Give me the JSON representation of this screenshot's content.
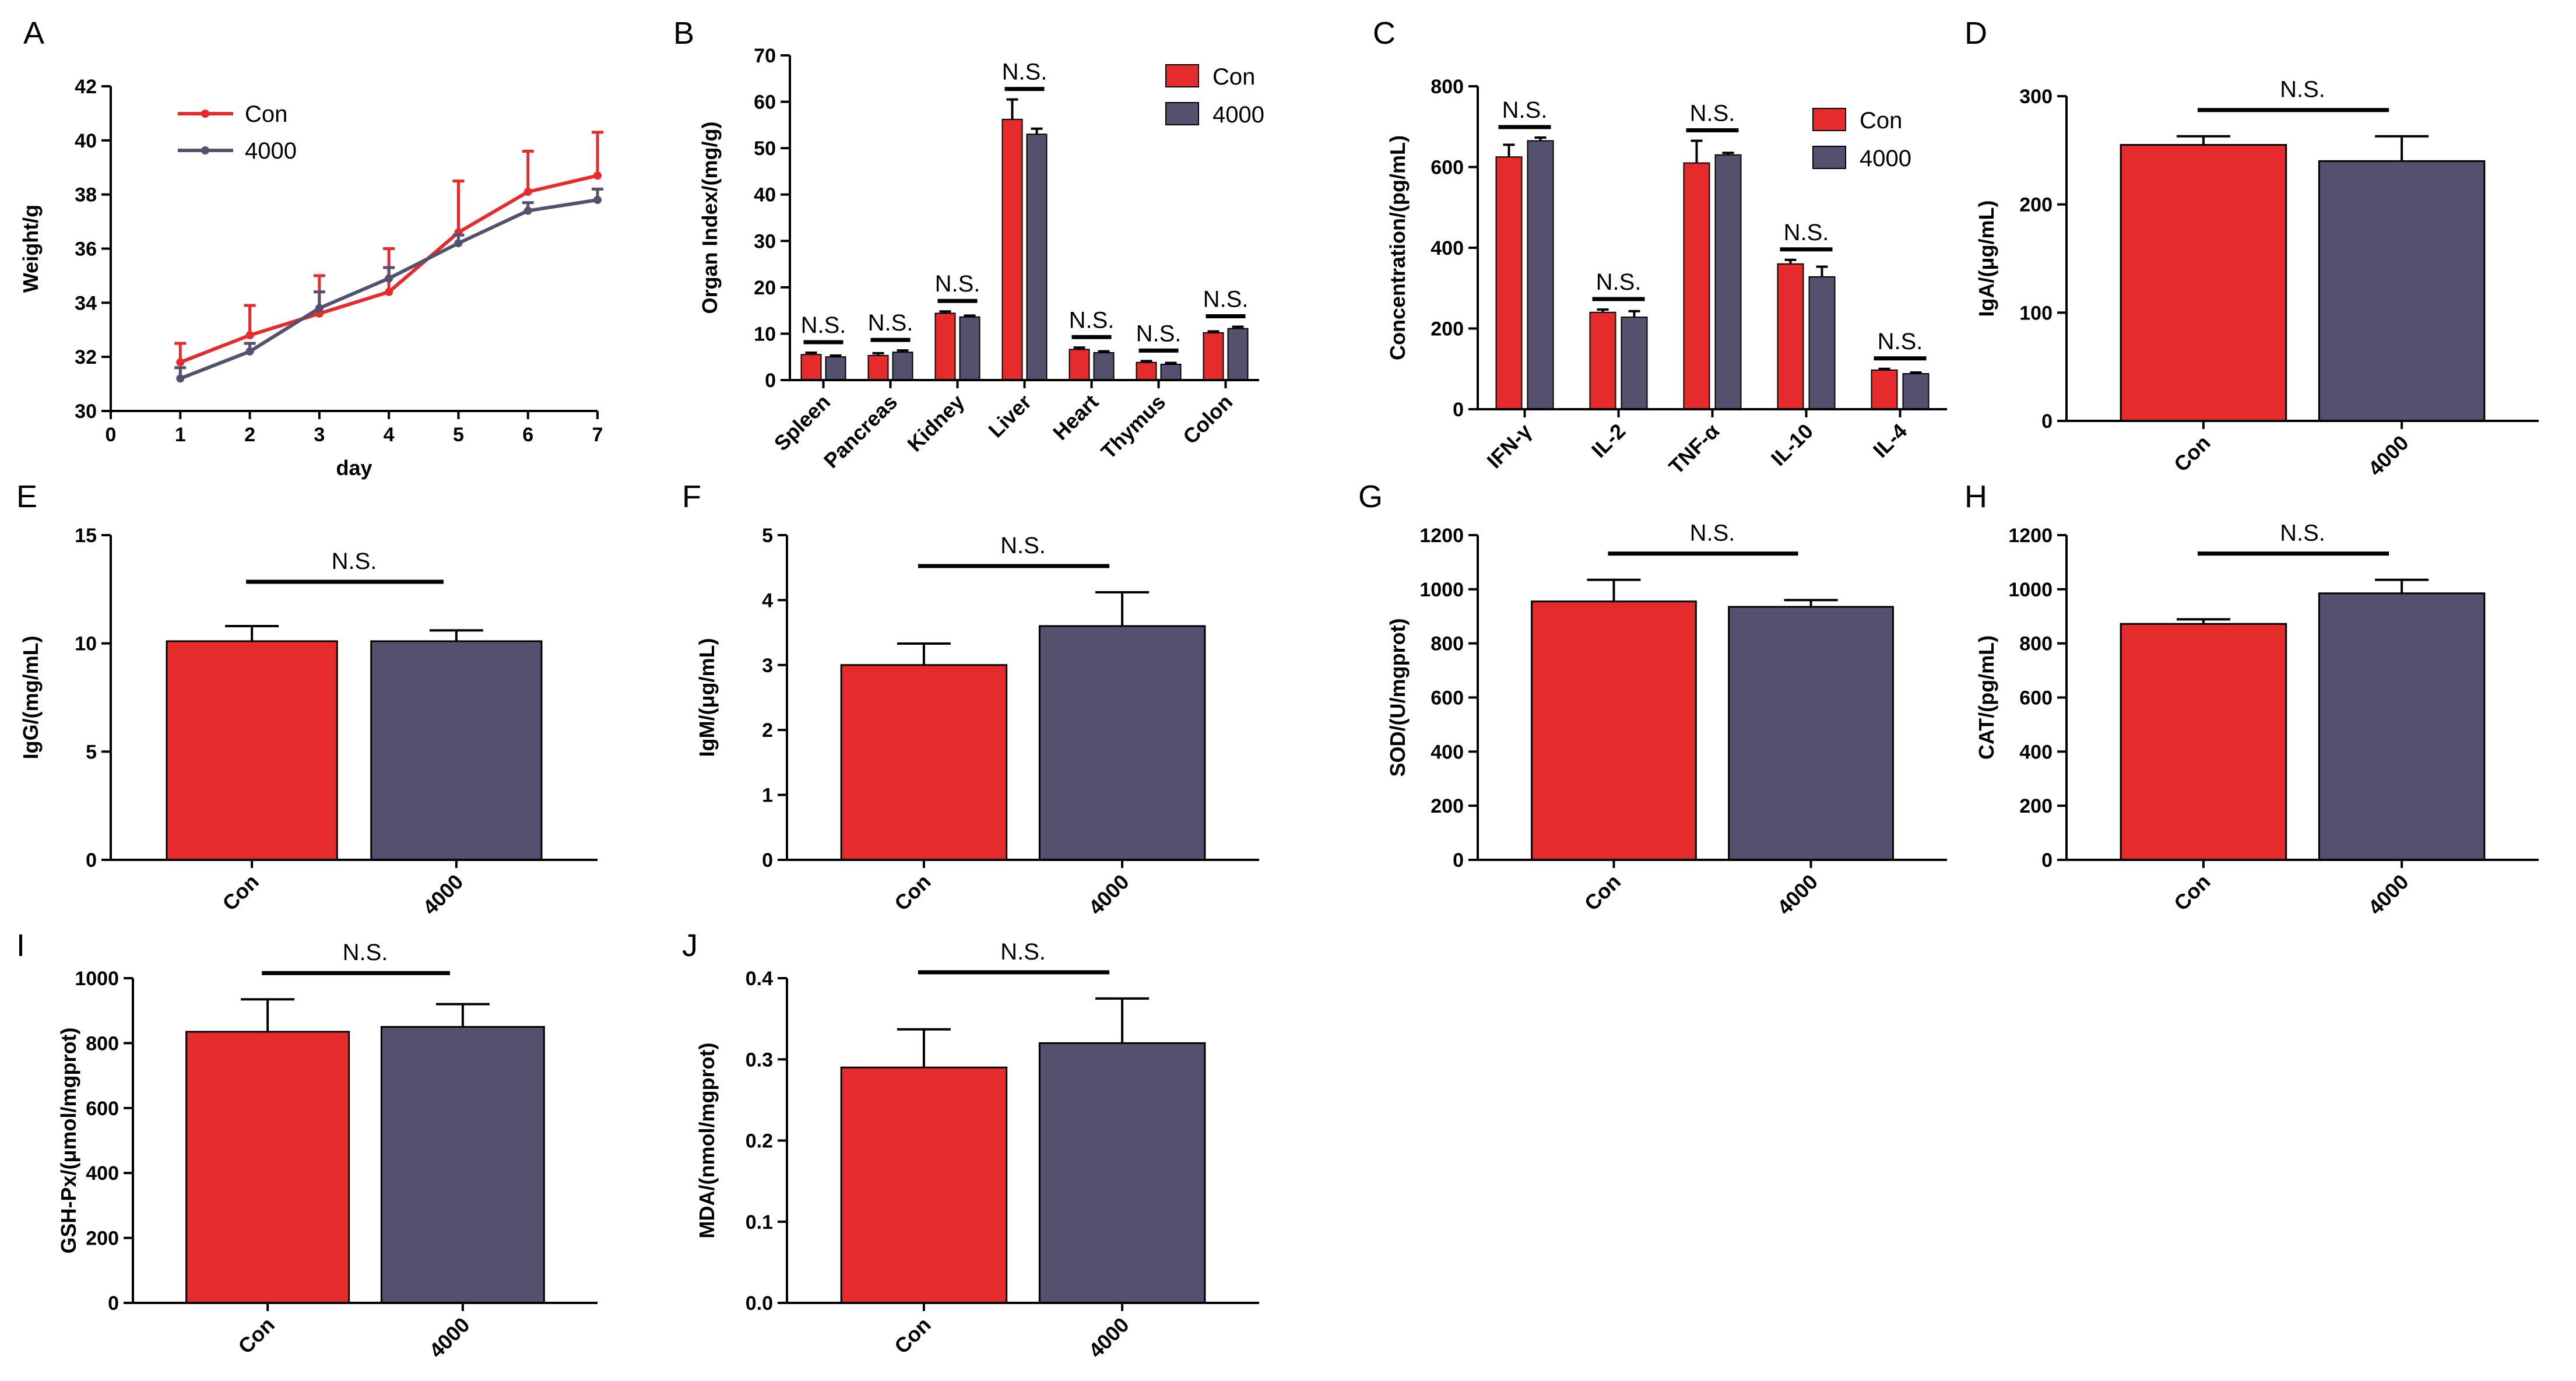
{
  "colors": {
    "con": "#e52b2b",
    "g4000": "#56506f",
    "axis": "#000000"
  },
  "chart_data": [
    {
      "id": "A",
      "panel_label": "A",
      "type": "line",
      "xlabel": "day",
      "ylabel": "Weight/g",
      "xlim": [
        0,
        7
      ],
      "xticks": [
        "0",
        "1",
        "2",
        "3",
        "4",
        "5",
        "6",
        "7"
      ],
      "ylim": [
        30,
        42
      ],
      "yticks": [
        "30",
        "32",
        "34",
        "36",
        "38",
        "40",
        "42"
      ],
      "legend": [
        "Con",
        "4000"
      ],
      "x": [
        1,
        2,
        3,
        4,
        5,
        6,
        7
      ],
      "series": [
        {
          "name": "Con",
          "values": [
            31.8,
            32.8,
            33.6,
            34.4,
            36.6,
            38.1,
            38.7
          ],
          "errors": [
            0.7,
            1.1,
            1.4,
            1.6,
            1.9,
            1.5,
            1.6
          ]
        },
        {
          "name": "4000",
          "values": [
            31.2,
            32.2,
            33.8,
            34.9,
            36.2,
            37.4,
            37.8
          ],
          "errors": [
            0.4,
            0.3,
            0.6,
            0.4,
            0.3,
            0.3,
            0.4
          ]
        }
      ]
    },
    {
      "id": "B",
      "panel_label": "B",
      "type": "bar",
      "ylabel": "Organ Index/(mg/g)",
      "ylim": [
        0,
        70
      ],
      "yticks": [
        "0",
        "10",
        "20",
        "30",
        "40",
        "50",
        "60",
        "70"
      ],
      "categories": [
        "Spleen",
        "Pancreas",
        "Kidney",
        "Liver",
        "Heart",
        "Thymus",
        "Colon"
      ],
      "legend": [
        "Con",
        "4000"
      ],
      "series": [
        {
          "name": "Con",
          "values": [
            5.5,
            5.3,
            14.4,
            56.2,
            6.6,
            3.8,
            10.2
          ],
          "errors": [
            0.4,
            0.5,
            0.4,
            4.3,
            0.4,
            0.3,
            0.3
          ]
        },
        {
          "name": "4000",
          "values": [
            5.0,
            6.0,
            13.6,
            53.0,
            5.9,
            3.4,
            11.1
          ],
          "errors": [
            0.3,
            0.4,
            0.3,
            1.2,
            0.3,
            0.3,
            0.4
          ]
        }
      ],
      "annotations": [
        "N.S.",
        "N.S.",
        "N.S.",
        "N.S.",
        "N.S.",
        "N.S.",
        "N.S."
      ]
    },
    {
      "id": "C",
      "panel_label": "C",
      "type": "bar",
      "ylabel": "Concentration/(pg/mL)",
      "ylim": [
        0,
        800
      ],
      "yticks": [
        "0",
        "200",
        "400",
        "600",
        "800"
      ],
      "categories": [
        "IFN-γ",
        "IL-2",
        "TNF-α",
        "IL-10",
        "IL-4"
      ],
      "legend": [
        "Con",
        "4000"
      ],
      "series": [
        {
          "name": "Con",
          "values": [
            625,
            240,
            610,
            360,
            97
          ],
          "errors": [
            30,
            7,
            55,
            10,
            3
          ]
        },
        {
          "name": "4000",
          "values": [
            665,
            228,
            630,
            328,
            88
          ],
          "errors": [
            8,
            15,
            5,
            25,
            3
          ]
        }
      ],
      "annotations": [
        "N.S.",
        "N.S.",
        "N.S.",
        "N.S.",
        "N.S."
      ]
    },
    {
      "id": "D",
      "panel_label": "D",
      "type": "bar",
      "ylabel": "IgA/(μg/mL)",
      "ylim": [
        0,
        300
      ],
      "yticks": [
        "0",
        "100",
        "200",
        "300"
      ],
      "categories": [
        "Con",
        "4000"
      ],
      "values": [
        255,
        240
      ],
      "errors": [
        8,
        23
      ],
      "annotation": "N.S."
    },
    {
      "id": "E",
      "panel_label": "E",
      "type": "bar",
      "ylabel": "IgG/(mg/mL)",
      "ylim": [
        0,
        15
      ],
      "yticks": [
        "0",
        "5",
        "10",
        "15"
      ],
      "categories": [
        "Con",
        "4000"
      ],
      "values": [
        10.1,
        10.1
      ],
      "errors": [
        0.7,
        0.5
      ],
      "annotation": "N.S."
    },
    {
      "id": "F",
      "panel_label": "F",
      "type": "bar",
      "ylabel": "IgM/(μg/mL)",
      "ylim": [
        0,
        5
      ],
      "yticks": [
        "0",
        "1",
        "2",
        "3",
        "4",
        "5"
      ],
      "categories": [
        "Con",
        "4000"
      ],
      "values": [
        3.0,
        3.6
      ],
      "errors": [
        0.33,
        0.52
      ],
      "annotation": "N.S."
    },
    {
      "id": "G",
      "panel_label": "G",
      "type": "bar",
      "ylabel": "SOD/(U/mgprot)",
      "ylim": [
        0,
        1200
      ],
      "yticks": [
        "0",
        "200",
        "400",
        "600",
        "800",
        "1000",
        "1200"
      ],
      "categories": [
        "Con",
        "4000"
      ],
      "values": [
        955,
        935
      ],
      "errors": [
        80,
        25
      ],
      "annotation": "N.S."
    },
    {
      "id": "H",
      "panel_label": "H",
      "type": "bar",
      "ylabel": "CAT/(pg/mL)",
      "ylim": [
        0,
        1200
      ],
      "yticks": [
        "0",
        "200",
        "400",
        "600",
        "800",
        "1000",
        "1200"
      ],
      "categories": [
        "Con",
        "4000"
      ],
      "values": [
        872,
        985
      ],
      "errors": [
        17,
        50
      ],
      "annotation": "N.S."
    },
    {
      "id": "I",
      "panel_label": "I",
      "type": "bar",
      "ylabel": "GSH-Px/(μmol/mgprot)",
      "ylim": [
        0,
        1000
      ],
      "yticks": [
        "0",
        "200",
        "400",
        "600",
        "800",
        "1000"
      ],
      "categories": [
        "Con",
        "4000"
      ],
      "values": [
        835,
        850
      ],
      "errors": [
        100,
        70
      ],
      "annotation": "N.S."
    },
    {
      "id": "J",
      "panel_label": "J",
      "type": "bar",
      "ylabel": "MDA/(nmol/mgprot)",
      "ylim": [
        0.0,
        0.4
      ],
      "yticks": [
        "0.0",
        "0.1",
        "0.2",
        "0.3",
        "0.4"
      ],
      "categories": [
        "Con",
        "4000"
      ],
      "values": [
        0.29,
        0.32
      ],
      "errors": [
        0.047,
        0.055
      ],
      "annotation": "N.S."
    }
  ]
}
